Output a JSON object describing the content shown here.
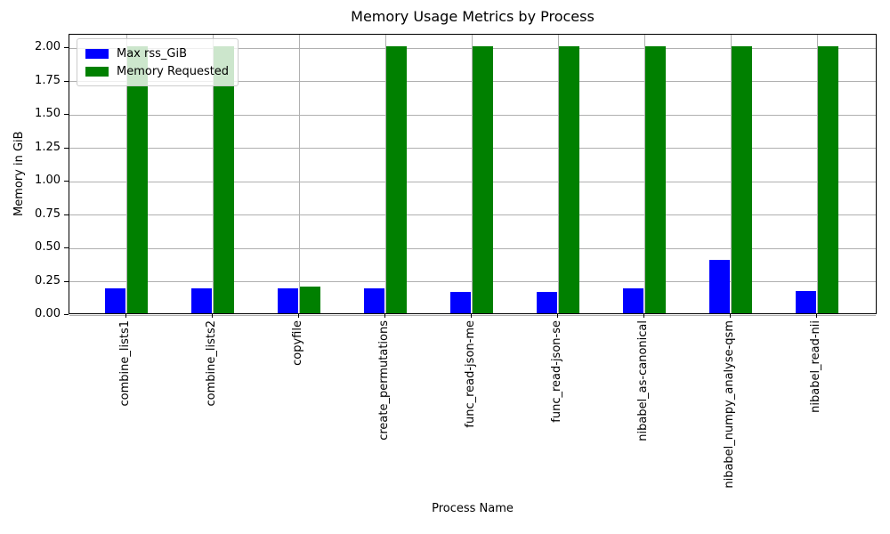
{
  "chart_data": {
    "type": "bar",
    "title": "Memory Usage Metrics by Process",
    "xlabel": "Process Name",
    "ylabel": "Memory in GiB",
    "categories": [
      "combine_lists1",
      "combine_lists2",
      "copyfile",
      "create_permutations",
      "func_read-json-me",
      "func_read-json-se",
      "nibabel_as-canonical",
      "nibabel_numpy_analyse-qsm",
      "nibabel_read-nii"
    ],
    "series": [
      {
        "name": "Max rss_GiB",
        "color": "#0000ff",
        "values": [
          0.19,
          0.19,
          0.19,
          0.19,
          0.16,
          0.16,
          0.19,
          0.4,
          0.17
        ]
      },
      {
        "name": "Memory Requested",
        "color": "#008000",
        "values": [
          2.0,
          2.0,
          0.2,
          2.0,
          2.0,
          2.0,
          2.0,
          2.0,
          2.0
        ]
      }
    ],
    "ylim": [
      0,
      2.1
    ],
    "yticks": [
      0.0,
      0.25,
      0.5,
      0.75,
      1.0,
      1.25,
      1.5,
      1.75,
      2.0
    ],
    "ytick_format": "0.00",
    "xtick_rotation": 90,
    "grid": true,
    "grid_color": "#b0b0b0",
    "legend_position": "upper-left",
    "background": "#ffffff"
  }
}
